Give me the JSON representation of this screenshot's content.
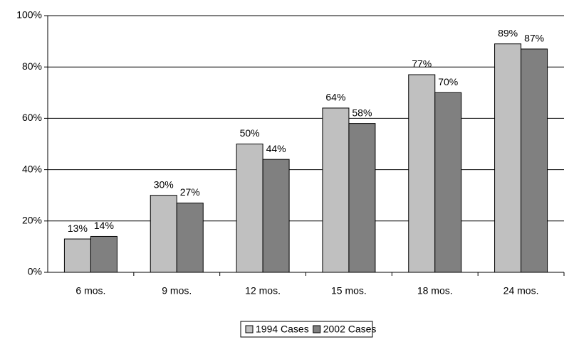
{
  "chart_data": {
    "type": "bar",
    "categories": [
      "6 mos.",
      "9 mos.",
      "12 mos.",
      "15 mos.",
      "18 mos.",
      "24 mos."
    ],
    "series": [
      {
        "name": "1994 Cases",
        "color": "#c0c0c0",
        "values": [
          13,
          30,
          50,
          64,
          77,
          89
        ],
        "value_labels": [
          "13%",
          "30%",
          "50%",
          "64%",
          "77%",
          "89%"
        ]
      },
      {
        "name": "2002 Cases",
        "color": "#808080",
        "values": [
          14,
          27,
          44,
          58,
          70,
          87
        ],
        "value_labels": [
          "14%",
          "27%",
          "44%",
          "58%",
          "70%",
          "87%"
        ]
      }
    ],
    "ylim": [
      0,
      100
    ],
    "yticks": [
      {
        "value": 0,
        "label": "0%"
      },
      {
        "value": 20,
        "label": "20%"
      },
      {
        "value": 40,
        "label": "40%"
      },
      {
        "value": 60,
        "label": "60%"
      },
      {
        "value": 80,
        "label": "80%"
      },
      {
        "value": 100,
        "label": "100%"
      }
    ],
    "grid": true,
    "legend": "bottom"
  }
}
